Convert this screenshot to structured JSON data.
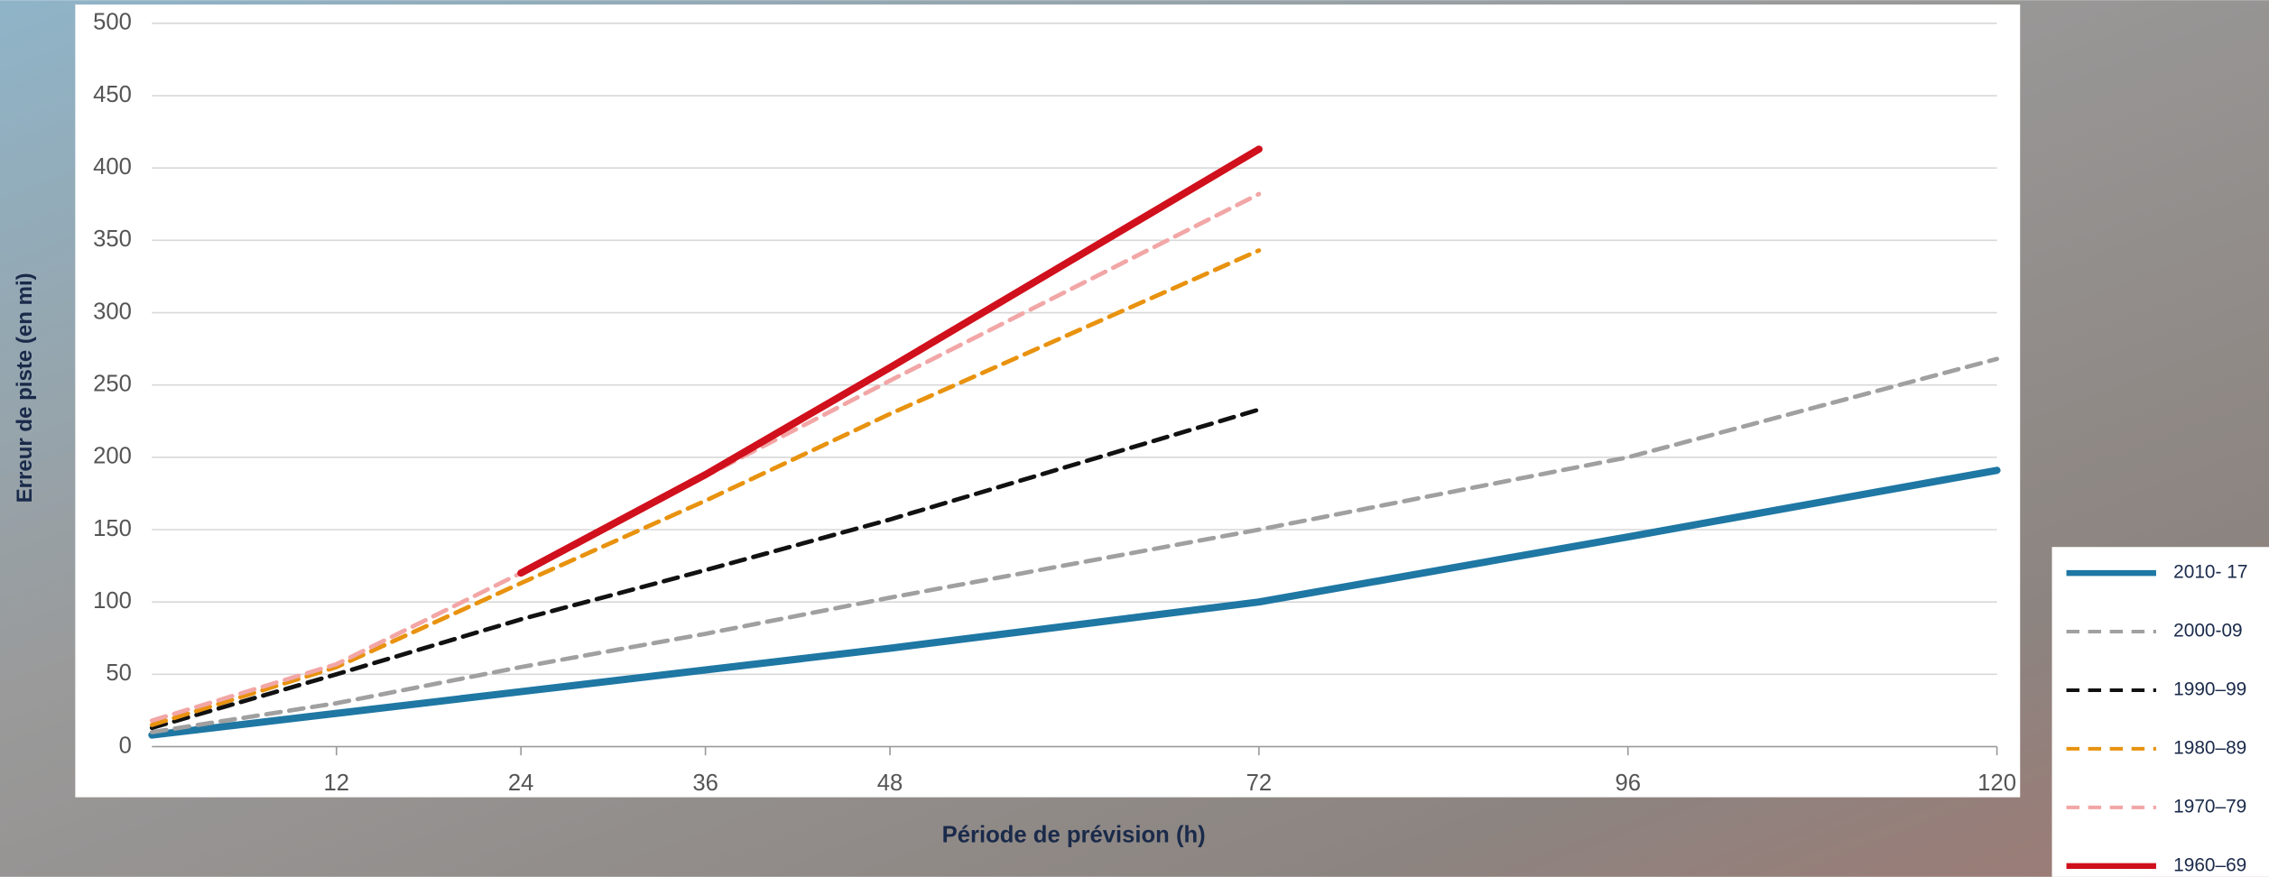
{
  "chart_data": {
    "type": "line",
    "x_label": "Période de prévision (h)",
    "y_label": "Erreur de piste (en mi)",
    "xlim": [
      0,
      120
    ],
    "xticks": [
      12,
      24,
      36,
      48,
      72,
      96,
      120
    ],
    "ylim": [
      0,
      500
    ],
    "yticks": [
      0,
      50,
      100,
      150,
      200,
      250,
      300,
      350,
      400,
      450,
      500
    ],
    "grid": true,
    "legend": "right",
    "series": [
      {
        "name": "2010- 17",
        "color": "#1f77a3",
        "dash": false,
        "x": [
          0,
          12,
          24,
          36,
          48,
          72,
          96,
          120
        ],
        "values": [
          8,
          23,
          38,
          53,
          68,
          100,
          145,
          191
        ]
      },
      {
        "name": "2000-09",
        "color": "#a0a0a0",
        "dash": true,
        "x": [
          0,
          12,
          24,
          36,
          48,
          72,
          96,
          120
        ],
        "values": [
          10,
          30,
          55,
          78,
          103,
          150,
          200,
          268
        ]
      },
      {
        "name": "1990–99",
        "color": "#111111",
        "dash": true,
        "x": [
          0,
          12,
          24,
          36,
          48,
          72
        ],
        "values": [
          13,
          50,
          88,
          122,
          157,
          233
        ]
      },
      {
        "name": "1980–89",
        "color": "#e8920e",
        "dash": true,
        "x": [
          0,
          12,
          24,
          36,
          48,
          72
        ],
        "values": [
          15,
          55,
          113,
          170,
          230,
          343
        ]
      },
      {
        "name": "1970–79",
        "color": "#f2a6a6",
        "dash": true,
        "x": [
          0,
          12,
          24,
          36,
          48,
          72
        ],
        "values": [
          18,
          57,
          120,
          187,
          253,
          382
        ]
      },
      {
        "name": "1960–69",
        "color": "#d0101c",
        "dash": false,
        "x": [
          24,
          36,
          48,
          72
        ],
        "values": [
          120,
          188,
          262,
          413
        ]
      }
    ]
  }
}
